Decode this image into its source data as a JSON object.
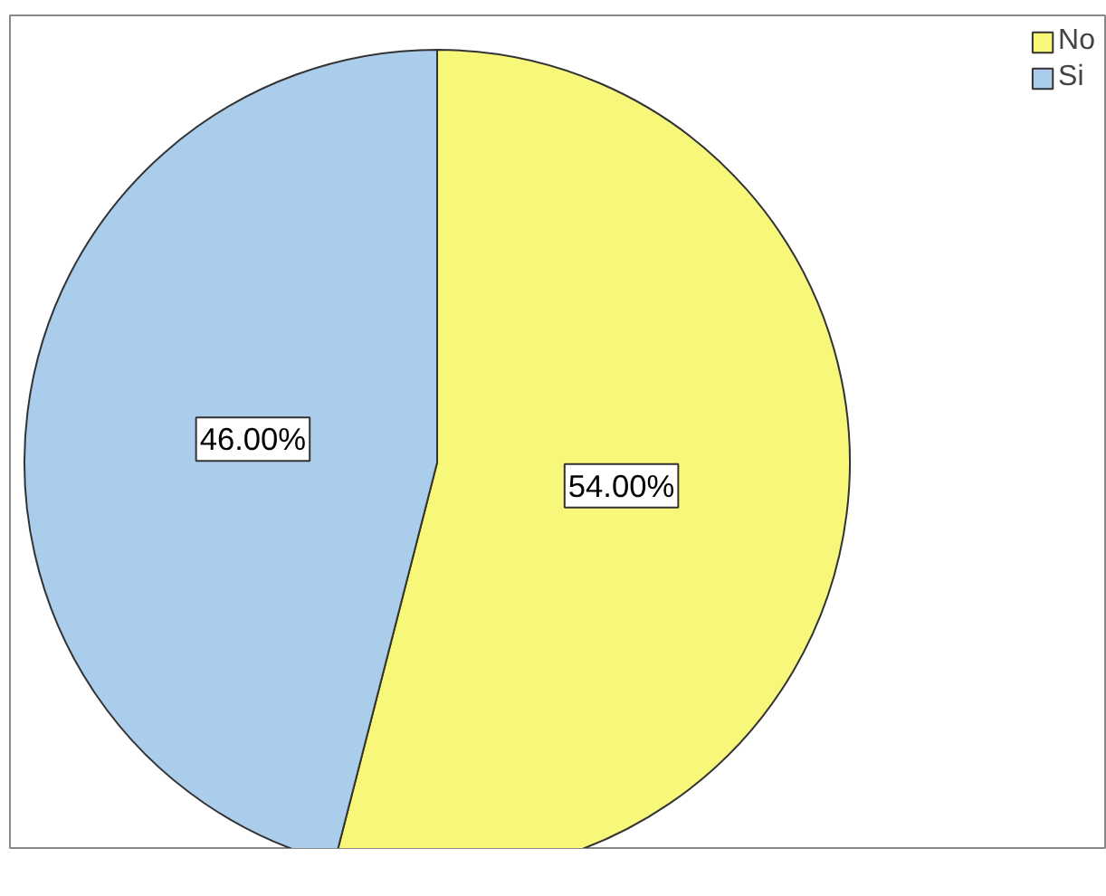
{
  "chart_data": {
    "type": "pie",
    "categories": [
      "No",
      "Si"
    ],
    "values": [
      54,
      46
    ],
    "colors": [
      "#f7f77a",
      "#abcdec"
    ],
    "value_labels": [
      "54.00%",
      "46.00%"
    ],
    "legend": "top right"
  }
}
